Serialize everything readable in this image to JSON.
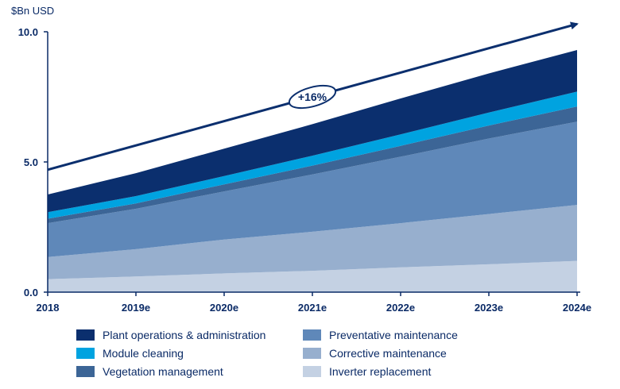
{
  "chart_data": {
    "type": "area",
    "stacked": true,
    "ylabel": "$Bn USD",
    "ylim": [
      0,
      10
    ],
    "yticks": [
      "0.0",
      "5.0",
      "10.0"
    ],
    "categories": [
      "2018",
      "2019e",
      "2020e",
      "2021e",
      "2022e",
      "2023e",
      "2024e"
    ],
    "series": [
      {
        "name": "Inverter replacement",
        "color": "#c4d1e3",
        "values": [
          0.5,
          0.6,
          0.72,
          0.82,
          0.95,
          1.07,
          1.2
        ]
      },
      {
        "name": "Corrective maintenance",
        "color": "#97afce",
        "values": [
          0.85,
          1.05,
          1.3,
          1.5,
          1.7,
          1.93,
          2.15
        ]
      },
      {
        "name": "Preventative maintenance",
        "color": "#5f88b9",
        "values": [
          1.3,
          1.55,
          1.85,
          2.2,
          2.55,
          2.9,
          3.2
        ]
      },
      {
        "name": "Vegetation management",
        "color": "#3c6596",
        "values": [
          0.17,
          0.21,
          0.27,
          0.34,
          0.42,
          0.5,
          0.58
        ]
      },
      {
        "name": "Module cleaning",
        "color": "#00a3e0",
        "values": [
          0.25,
          0.28,
          0.32,
          0.38,
          0.44,
          0.5,
          0.57
        ]
      },
      {
        "name": "Plant operations & administration",
        "color": "#0b2f6e",
        "values": [
          0.68,
          0.88,
          1.05,
          1.21,
          1.38,
          1.5,
          1.6
        ]
      }
    ],
    "annotation": {
      "text": "+16%",
      "type": "growth-arrow",
      "from": [
        0,
        4.7
      ],
      "to": [
        6,
        10.3
      ]
    },
    "legend": {
      "placement": "bottom",
      "order": [
        "Plant operations & administration",
        "Preventative maintenance",
        "Module cleaning",
        "Corrective maintenance",
        "Vegetation management",
        "Inverter replacement"
      ]
    },
    "grid": false
  }
}
